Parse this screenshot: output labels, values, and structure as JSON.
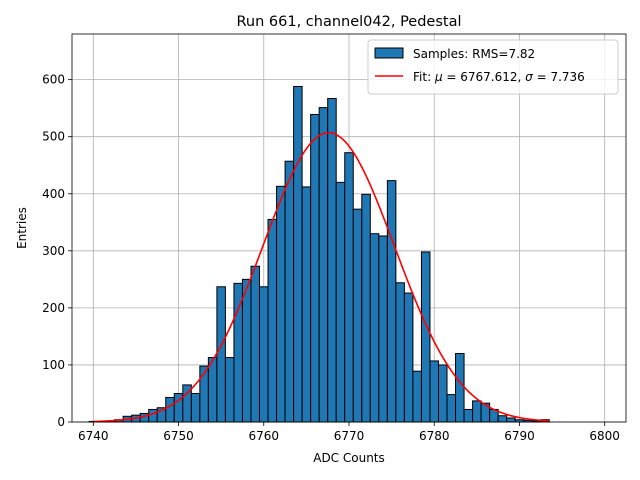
{
  "chart_data": {
    "type": "bar",
    "title": "Run 661, channel042, Pedestal",
    "xlabel": "ADC Counts",
    "ylabel": "Entries",
    "xlim": [
      6737.5,
      6802.5
    ],
    "ylim": [
      0,
      680
    ],
    "xticks": [
      6740,
      6750,
      6760,
      6770,
      6780,
      6790,
      6800
    ],
    "yticks": [
      0,
      100,
      200,
      300,
      400,
      500,
      600
    ],
    "grid": true,
    "legend_position": "top-right",
    "bin_width": 1,
    "histogram": {
      "label": "Samples: RMS=7.82",
      "color": "#1f77b4",
      "bins": [
        6740,
        6741,
        6742,
        6743,
        6744,
        6745,
        6746,
        6747,
        6748,
        6749,
        6750,
        6751,
        6752,
        6753,
        6754,
        6755,
        6756,
        6757,
        6758,
        6759,
        6760,
        6761,
        6762,
        6763,
        6764,
        6765,
        6766,
        6767,
        6768,
        6769,
        6770,
        6771,
        6772,
        6773,
        6774,
        6775,
        6776,
        6777,
        6778,
        6779,
        6780,
        6781,
        6782,
        6783,
        6784,
        6785,
        6786,
        6787,
        6788,
        6789,
        6790,
        6791,
        6792,
        6793
      ],
      "values": [
        1,
        1,
        2,
        4,
        10,
        12,
        15,
        22,
        25,
        43,
        50,
        65,
        50,
        98,
        113,
        237,
        113,
        243,
        250,
        273,
        237,
        355,
        413,
        457,
        588,
        412,
        539,
        551,
        567,
        420,
        472,
        373,
        399,
        330,
        326,
        423,
        244,
        226,
        89,
        298,
        107,
        100,
        48,
        120,
        22,
        37,
        33,
        22,
        11,
        7,
        4,
        3,
        2,
        4
      ]
    },
    "fit": {
      "label": "Fit: μ = 6767.612, σ = 7.736",
      "label_prefix": "Fit: ",
      "mu_symbol": "μ",
      "mu_text": " = 6767.612, ",
      "sigma_symbol": "σ",
      "sigma_text": " = 7.736",
      "mu": 6767.612,
      "sigma": 7.736,
      "amplitude": 507,
      "x_range": [
        6740,
        6793.5
      ],
      "color": "#ff0000"
    }
  }
}
